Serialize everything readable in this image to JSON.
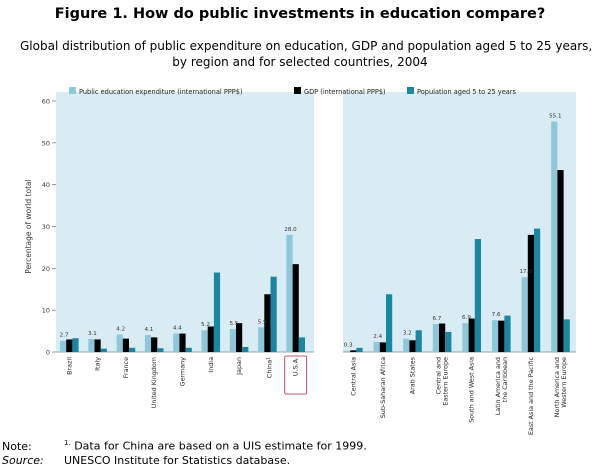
{
  "title": "Figure 1. How do public investments in education compare?",
  "subtitle": [
    "Global distribution of public expenditure on education, GDP and population aged 5 to 25 years,",
    "by region and for selected countries, 2004"
  ],
  "colors": {
    "panel_bg": "#d9ecf3",
    "expenditure": "#8dc7dc",
    "gdp": "#000000",
    "population": "#1787a4",
    "highlight": "#b5234d"
  },
  "chart_data": {
    "type": "bar",
    "ylabel": "Percentage of world total",
    "ylim": [
      0,
      60
    ],
    "yticks": [
      "0",
      "10",
      "20",
      "30",
      "40",
      "50",
      "60"
    ],
    "legend_position": "top",
    "grid": false,
    "series": [
      {
        "name": "Public education expenditure (international PPP$)"
      },
      {
        "name": "GDP (international PPP$)"
      },
      {
        "name": "Population aged 5 to 25 years"
      }
    ],
    "panels": [
      {
        "name": "countries",
        "groups": [
          {
            "label": [
              "Brazil"
            ],
            "values": [
              2.7,
              3.0,
              3.3
            ],
            "value_label": "2.7"
          },
          {
            "label": [
              "Italy"
            ],
            "values": [
              3.1,
              3.0,
              0.8
            ],
            "value_label": "3.1"
          },
          {
            "label": [
              "France"
            ],
            "values": [
              4.2,
              3.2,
              1.0
            ],
            "value_label": "4.2"
          },
          {
            "label": [
              "United Kingdom"
            ],
            "values": [
              4.1,
              3.5,
              0.9
            ],
            "value_label": "4.1"
          },
          {
            "label": [
              "Germany"
            ],
            "values": [
              4.4,
              4.4,
              1.0
            ],
            "value_label": "4.4"
          },
          {
            "label": [
              "India"
            ],
            "values": [
              5.2,
              6.1,
              19.0
            ],
            "value_label": "5.2"
          },
          {
            "label": [
              "Japan"
            ],
            "values": [
              5.5,
              6.9,
              1.2
            ],
            "value_label": "5.5"
          },
          {
            "label": [
              "China"
            ],
            "values": [
              5.9,
              13.8,
              18.0
            ],
            "value_label": "5.9",
            "sup": "1"
          },
          {
            "label": [
              "U.S.A."
            ],
            "values": [
              28.0,
              21.0,
              3.5
            ],
            "value_label": "28.0",
            "highlight": true
          }
        ]
      },
      {
        "name": "regions",
        "groups": [
          {
            "label": [
              "Central Asia"
            ],
            "values": [
              0.3,
              0.4,
              1.0
            ],
            "value_label": "0.3"
          },
          {
            "label": [
              "Sub-Saharan Africa"
            ],
            "values": [
              2.4,
              2.3,
              13.8
            ],
            "value_label": "2.4"
          },
          {
            "label": [
              "Arab States"
            ],
            "values": [
              3.2,
              2.8,
              5.2
            ],
            "value_label": "3.2"
          },
          {
            "label": [
              "Central and",
              "Eastern Europe"
            ],
            "values": [
              6.7,
              6.8,
              4.8
            ],
            "value_label": "6.7"
          },
          {
            "label": [
              "South and West Asia"
            ],
            "values": [
              6.9,
              8.0,
              27.0
            ],
            "value_label": "6.9"
          },
          {
            "label": [
              "Latin America and",
              "the Caribbean"
            ],
            "values": [
              7.6,
              7.5,
              8.7
            ],
            "value_label": "7.6"
          },
          {
            "label": [
              "East Asia and the Pacific"
            ],
            "values": [
              17.9,
              28.0,
              29.5
            ],
            "value_label": "17.9"
          },
          {
            "label": [
              "North America and",
              "Western Europe"
            ],
            "values": [
              55.1,
              43.5,
              7.8
            ],
            "value_label": "55.1"
          }
        ]
      }
    ]
  },
  "notes": {
    "note_key": "Note:",
    "note_sup": "1.",
    "note_text": "Data for China are based on a UIS estimate for 1999.",
    "source_key": "Source:",
    "source_text": "UNESCO Institute for Statistics database."
  }
}
